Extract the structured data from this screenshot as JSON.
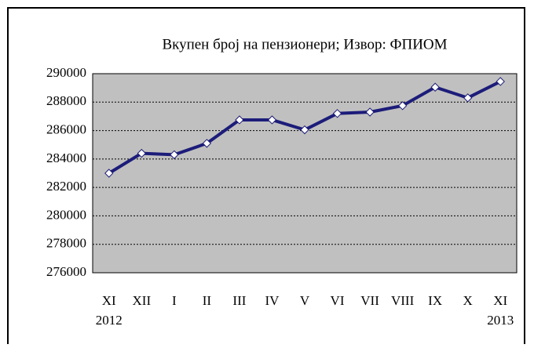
{
  "chart_data": {
    "type": "line",
    "title": "Вкупен број на пензионери; Извор: ФПИОМ",
    "categories": [
      "XI",
      "XII",
      "I",
      "II",
      "III",
      "IV",
      "V",
      "VI",
      "VII",
      "VIII",
      "IX",
      "X",
      "XI"
    ],
    "year_labels": [
      "2012",
      null,
      null,
      null,
      null,
      null,
      null,
      null,
      null,
      null,
      null,
      null,
      "2013"
    ],
    "series": [
      {
        "color": "#1c1c7a",
        "values": [
          283000,
          284400,
          284300,
          285100,
          286750,
          286750,
          286050,
          287200,
          287300,
          287750,
          289050,
          288300,
          289450
        ]
      }
    ],
    "ylim": [
      276000,
      290000
    ],
    "yticks": [
      276000,
      278000,
      280000,
      282000,
      284000,
      286000,
      288000,
      290000
    ],
    "grid": true,
    "plot_background": "#c0c0c0"
  }
}
